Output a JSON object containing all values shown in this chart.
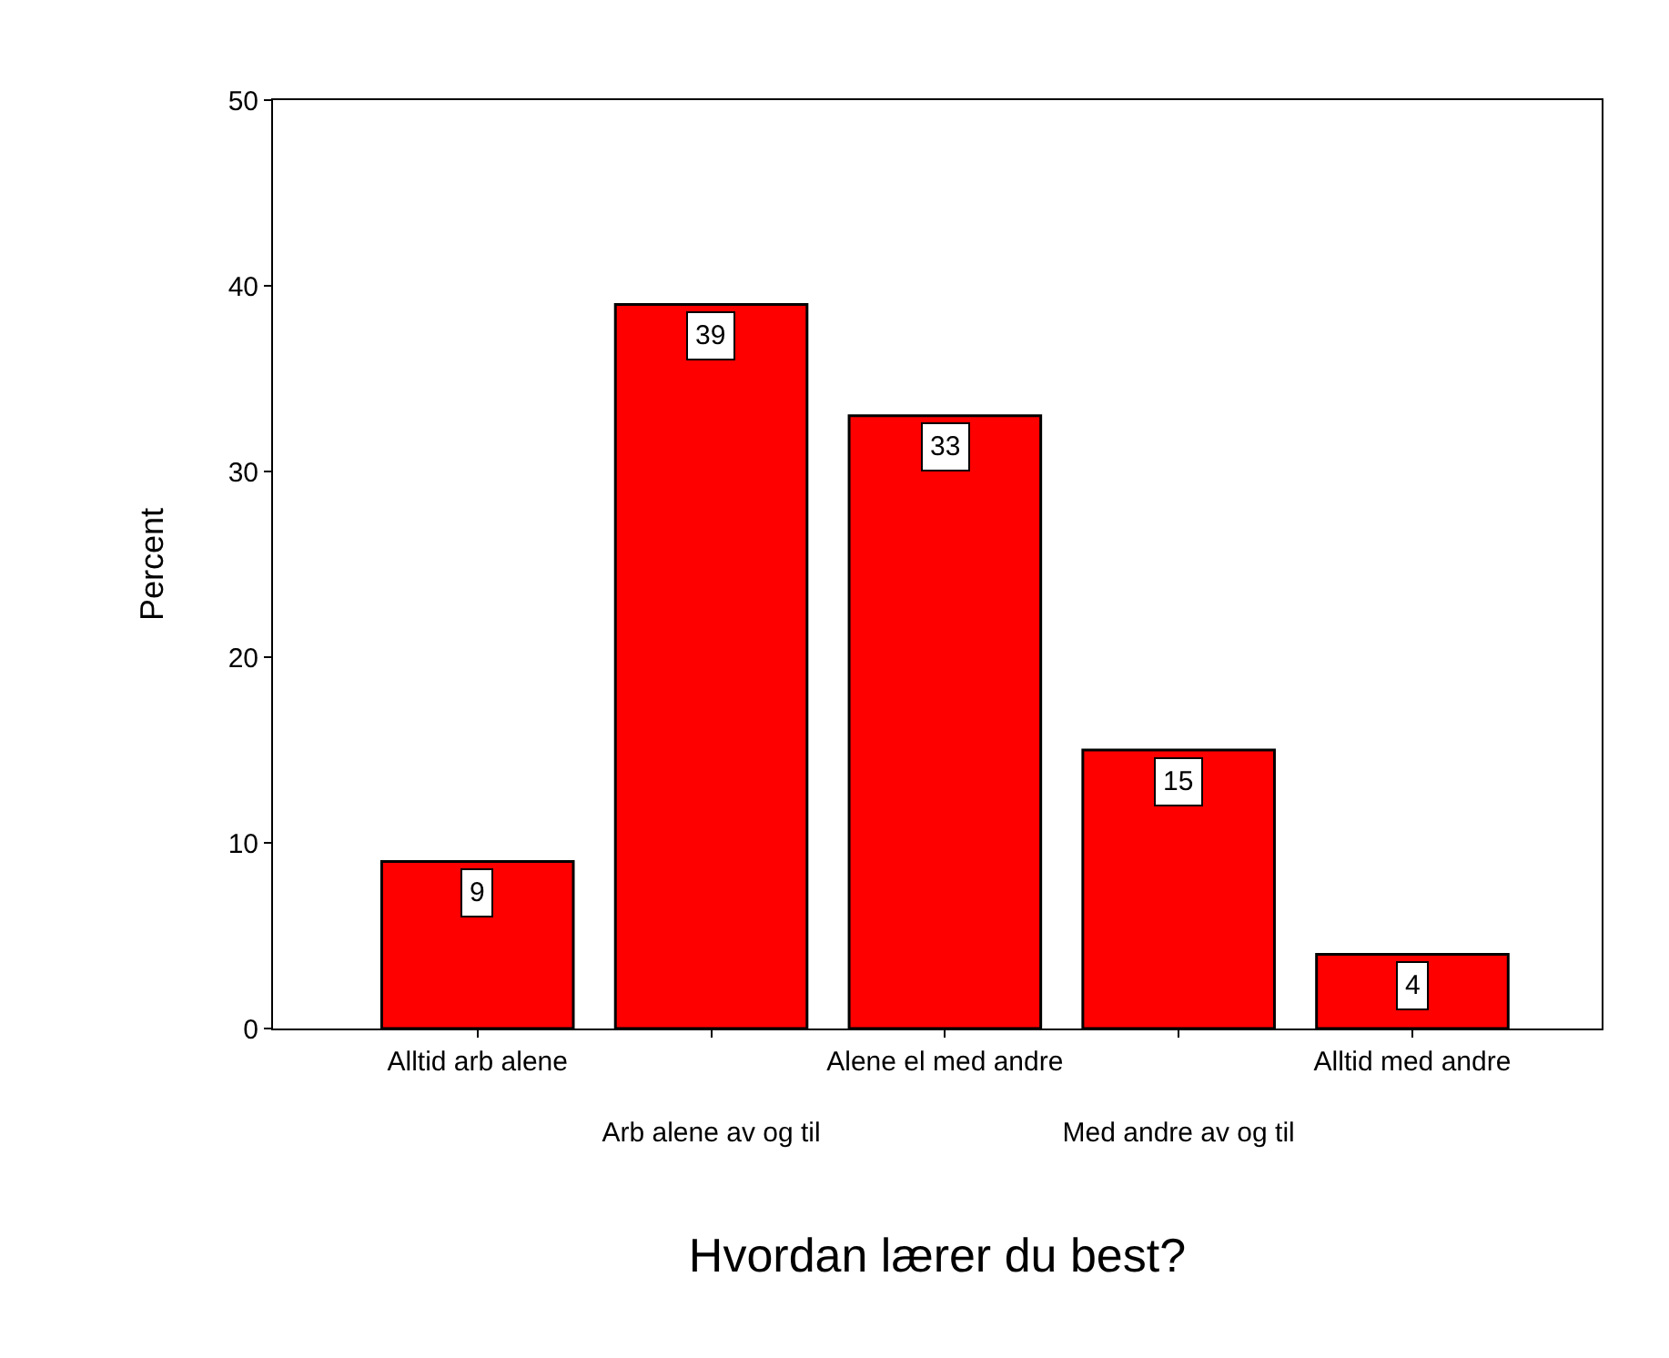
{
  "chart_data": {
    "type": "bar",
    "xlabel": "Hvordan lærer du best?",
    "ylabel": "Percent",
    "categories": [
      "Alltid arb alene",
      "Arb alene av og til",
      "Alene el med andre",
      "Med andre av og til",
      "Alltid med andre"
    ],
    "values": [
      9,
      39,
      33,
      15,
      4
    ],
    "color": "#ff0000",
    "ylim": [
      0,
      50
    ],
    "yticks": [
      0,
      10,
      20,
      30,
      40,
      50
    ],
    "data_labels": true
  }
}
